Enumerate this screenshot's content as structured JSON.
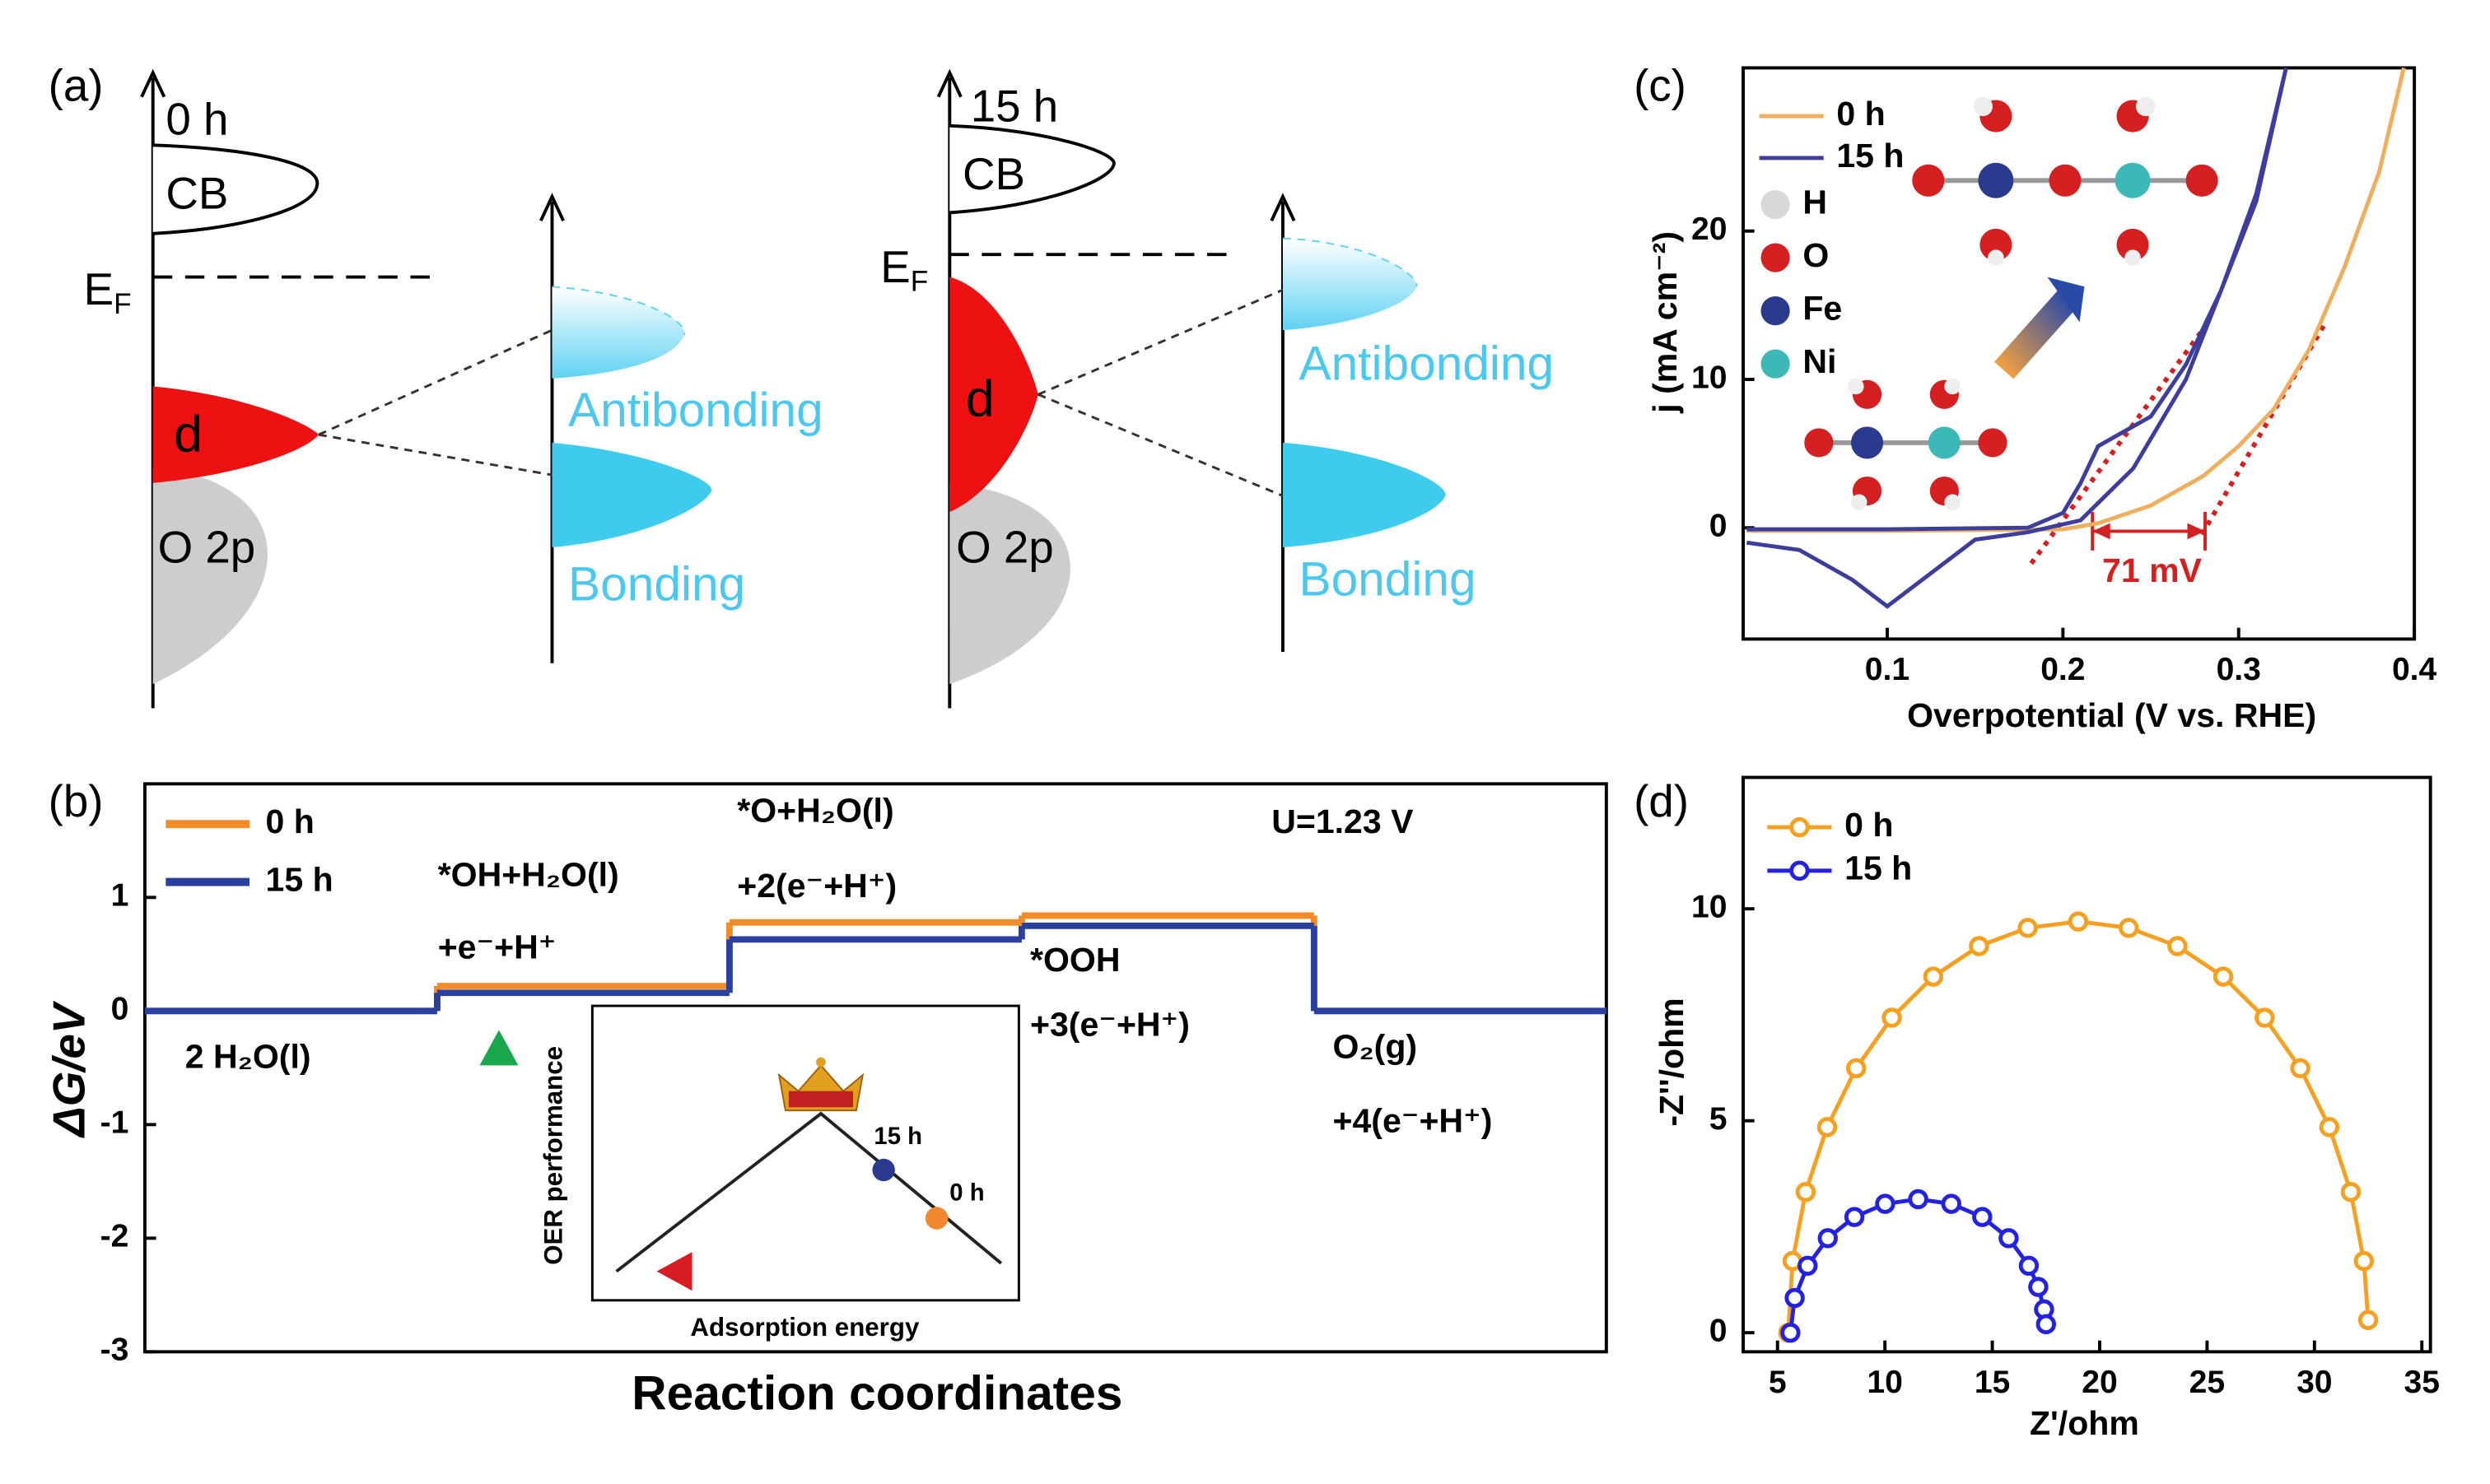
{
  "diagram_a": {
    "panel_label": "(a)",
    "states": [
      {
        "time": "0 h",
        "cb": "CB",
        "ef": {
          "main": "E",
          "sub": "F"
        },
        "d": "d",
        "o2p": "O 2p",
        "antibonding": "Antibonding",
        "bonding": "Bonding"
      },
      {
        "time": "15 h",
        "cb": "CB",
        "ef": {
          "main": "E",
          "sub": "F"
        },
        "d": "d",
        "o2p": "O 2p",
        "antibonding": "Antibonding",
        "bonding": "Bonding"
      }
    ]
  },
  "chart_data": [
    {
      "type": "step",
      "panel_label": "(b)",
      "x_label": "Reaction coordinates",
      "y_label": "ΔG/eV",
      "annotation": "U=1.23 V",
      "categories": [
        "2 H₂O(l)",
        "*OH+H₂O(l)",
        "*O+H₂O(l)",
        "*OOH",
        "O₂(g)"
      ],
      "category_sublabels": [
        null,
        "+e⁻+H⁺",
        "+2(e⁻+H⁺)",
        "+3(e⁻+H⁺)",
        "+4(e⁻+H⁺)"
      ],
      "series": [
        {
          "name": "0 h",
          "color": "#f28c28",
          "values": [
            0,
            0.22,
            0.78,
            0.84,
            0
          ]
        },
        {
          "name": "15 h",
          "color": "#2b3f9e",
          "values": [
            0,
            0.16,
            0.63,
            0.75,
            0
          ]
        }
      ],
      "ylim": [
        -3,
        2
      ],
      "yticks": [
        -3,
        -2,
        -1,
        0,
        1
      ],
      "inset": {
        "high": "15 h",
        "low": "0 h",
        "y_label": "OER performance",
        "x_label": "Adsorption energy"
      }
    },
    {
      "type": "line",
      "panel_label": "(c)",
      "x_label": "Overpotential (V vs. RHE)",
      "y_label": "j (mA cm⁻²)",
      "annotation": "71 mV",
      "atom_legend": [
        {
          "name": "H",
          "color": "#d8d8d8"
        },
        {
          "name": "O",
          "color": "#d42020"
        },
        {
          "name": "Fe",
          "color": "#2a3a8c"
        },
        {
          "name": "Ni",
          "color": "#3cb8b8"
        }
      ],
      "series": [
        {
          "name": "0 h",
          "color": "#efae5e",
          "x": [
            0.02,
            0.1,
            0.2,
            0.22,
            0.25,
            0.28,
            0.3,
            0.32,
            0.34,
            0.36,
            0.38,
            0.394
          ],
          "values": [
            -0.2,
            -0.2,
            -0.1,
            0.3,
            1.5,
            3.5,
            5.5,
            8,
            12,
            17.5,
            24,
            31
          ]
        },
        {
          "name": "15 h",
          "color": "#3d3d9c",
          "x": [
            0.02,
            0.1,
            0.18,
            0.2,
            0.21,
            0.22,
            0.235,
            0.25,
            0.27,
            0.29,
            0.31,
            0.327,
            0.31,
            0.27,
            0.24,
            0.21,
            0.18,
            0.15,
            0.12,
            0.1,
            0.08,
            0.05,
            0.02
          ],
          "values": [
            -0.1,
            -0.1,
            0,
            1,
            3,
            5.5,
            6.5,
            7.5,
            11,
            16,
            22.5,
            31,
            22,
            10,
            4,
            0.5,
            -0.3,
            -0.8,
            -3.5,
            -5.3,
            -3.5,
            -1.5,
            -1
          ]
        }
      ],
      "xlim": [
        0.018,
        0.4
      ],
      "xticks": [
        0.1,
        0.2,
        0.3,
        0.4
      ],
      "ylim": [
        -7.5,
        31
      ],
      "yticks": [
        0,
        10,
        20
      ]
    },
    {
      "type": "line",
      "panel_label": "(d)",
      "x_label": "Z'/ohm",
      "y_label": "-Z''/ohm",
      "markers": true,
      "series": [
        {
          "name": "0 h",
          "color": "#f5a020",
          "x": [
            5.5,
            5.7,
            6.31,
            7.31,
            8.66,
            10.32,
            12.25,
            14.38,
            16.65,
            19.0,
            21.35,
            23.62,
            25.75,
            27.68,
            29.34,
            30.69,
            31.69,
            32.3,
            32.5
          ],
          "values": [
            0,
            1.69,
            3.32,
            4.85,
            6.24,
            7.43,
            8.4,
            9.12,
            9.55,
            9.7,
            9.55,
            9.12,
            8.4,
            7.43,
            6.24,
            4.85,
            3.32,
            1.69,
            0.3
          ]
        },
        {
          "name": "15 h",
          "color": "#2222e0",
          "x": [
            5.6,
            5.8,
            6.4,
            7.34,
            8.58,
            10.01,
            11.55,
            13.09,
            14.53,
            15.76,
            16.7,
            17.14,
            17.41,
            17.5
          ],
          "values": [
            0,
            0.82,
            1.58,
            2.23,
            2.73,
            3.04,
            3.15,
            3.04,
            2.73,
            2.23,
            1.58,
            1.08,
            0.55,
            0.2
          ]
        }
      ],
      "xlim": [
        3.4,
        35.4
      ],
      "xticks": [
        5,
        10,
        15,
        20,
        25,
        30,
        35
      ],
      "ylim": [
        -0.45,
        13.1
      ],
      "yticks": [
        0,
        5,
        10
      ]
    }
  ]
}
